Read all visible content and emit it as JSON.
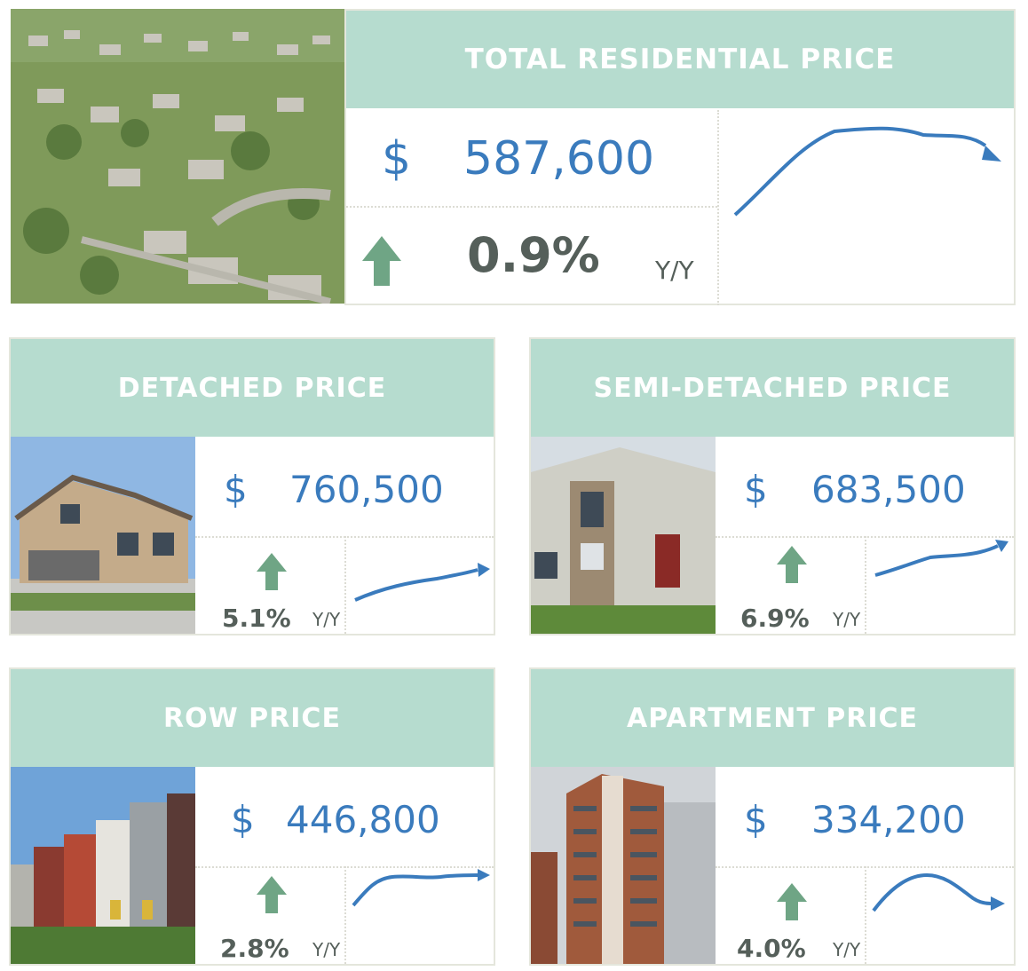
{
  "colors": {
    "header_bg": "#b6dccf",
    "price_blue": "#3a7bbd",
    "arrow_green": "#6fa585",
    "text_gray": "#555f5a",
    "trend_line": "#3a7bbd"
  },
  "total": {
    "title": "TOTAL RESIDENTIAL PRICE",
    "currency": "$",
    "price": "587,600",
    "change": "0.9%",
    "period": "Y/Y",
    "trend": "rise-then-flat-decline",
    "photo": "suburban-aerial-photo"
  },
  "detached": {
    "title": "DETACHED PRICE",
    "currency": "$",
    "price": "760,500",
    "change": "5.1%",
    "period": "Y/Y",
    "trend": "steady-rise",
    "photo": "detached-house-photo"
  },
  "semi": {
    "title": "SEMI-DETACHED PRICE",
    "currency": "$",
    "price": "683,500",
    "change": "6.9%",
    "period": "Y/Y",
    "trend": "steady-rise",
    "photo": "semi-detached-house-photo"
  },
  "row": {
    "title": "ROW PRICE",
    "currency": "$",
    "price": "446,800",
    "change": "2.8%",
    "period": "Y/Y",
    "trend": "rise-then-flat",
    "photo": "row-houses-photo"
  },
  "apartment": {
    "title": "APARTMENT PRICE",
    "currency": "$",
    "price": "334,200",
    "change": "4.0%",
    "period": "Y/Y",
    "trend": "rise-then-decline",
    "photo": "apartment-tower-photo"
  }
}
